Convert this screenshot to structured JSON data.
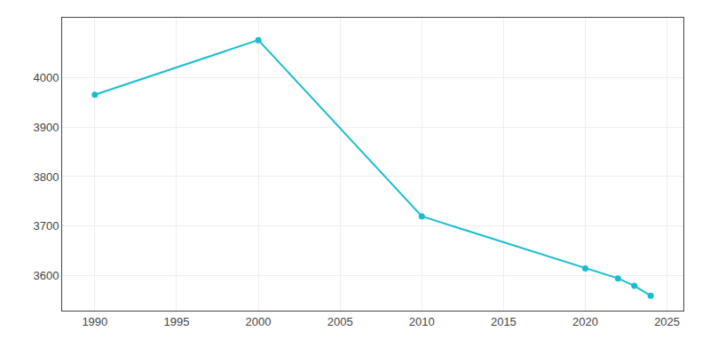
{
  "chart_data": {
    "type": "line",
    "x": [
      1990,
      2000,
      2010,
      2020,
      2022,
      2023,
      2024
    ],
    "values": [
      3965,
      4075,
      3720,
      3615,
      3595,
      3580,
      3560
    ],
    "color": "#17becf",
    "marker": "circle",
    "line_style": "solid",
    "xlim": [
      1988,
      2026
    ],
    "ylim": [
      3530,
      4120
    ],
    "xticks": [
      1990,
      1995,
      2000,
      2005,
      2010,
      2015,
      2020,
      2025
    ],
    "yticks": [
      3600,
      3700,
      3800,
      3900,
      4000
    ],
    "grid": true
  }
}
